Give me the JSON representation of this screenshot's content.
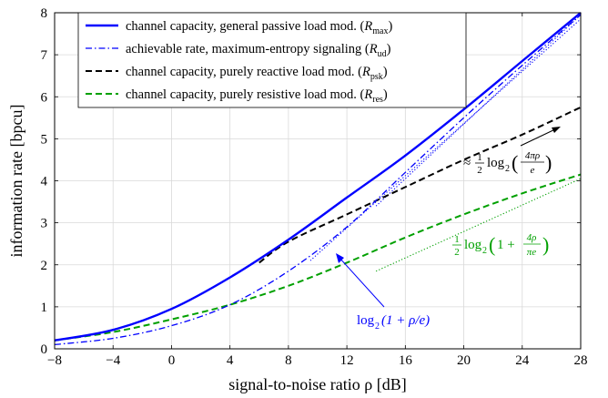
{
  "chart_data": {
    "type": "line",
    "xlabel": "signal-to-noise ratio ρ [dB]",
    "ylabel": "information rate [bpcu]",
    "xlim": [
      -8,
      28
    ],
    "ylim": [
      0,
      8
    ],
    "xticks": [
      -8,
      -4,
      0,
      4,
      8,
      12,
      16,
      20,
      24,
      28
    ],
    "yticks": [
      0,
      1,
      2,
      3,
      4,
      5,
      6,
      7,
      8
    ],
    "xtick_labels": [
      "−8",
      "−4",
      "0",
      "4",
      "8",
      "12",
      "16",
      "20",
      "24",
      "28"
    ],
    "ytick_labels": [
      "0",
      "1",
      "2",
      "3",
      "4",
      "5",
      "6",
      "7",
      "8"
    ],
    "grid": true,
    "legend_position": "top-left",
    "series": [
      {
        "name": "channel capacity, general passive load mod. (Rmax)",
        "legend_main": "channel capacity, general passive load mod. (",
        "legend_sym": "R",
        "legend_sub": "max",
        "color": "#0000ff",
        "style": "solid",
        "x": [
          -8,
          -4,
          0,
          4,
          8,
          12,
          16,
          20,
          24,
          28
        ],
        "y": [
          0.2,
          0.45,
          0.95,
          1.7,
          2.6,
          3.6,
          4.6,
          5.7,
          6.85,
          8.0
        ]
      },
      {
        "name": "achievable rate, maximum-entropy signaling (Rud)",
        "legend_main": "achievable rate, maximum-entropy signaling (",
        "legend_sym": "R",
        "legend_sub": "ud",
        "color": "#0000ff",
        "style": "dashdot",
        "x": [
          -8,
          -4,
          0,
          4,
          8,
          12,
          16,
          20,
          24,
          28
        ],
        "y": [
          0.1,
          0.25,
          0.55,
          1.05,
          1.85,
          2.9,
          4.2,
          5.5,
          6.75,
          7.95
        ]
      },
      {
        "name": "channel capacity, purely reactive load mod. (Rpsk)",
        "legend_main": "channel capacity, purely reactive load mod. (",
        "legend_sym": "R",
        "legend_sub": "psk",
        "color": "#000000",
        "style": "dashed",
        "x": [
          6,
          8,
          12,
          16,
          20,
          24,
          28
        ],
        "y": [
          2.05,
          2.55,
          3.2,
          3.85,
          4.5,
          5.1,
          5.75
        ]
      },
      {
        "name": "channel capacity, purely resistive load mod. (Rres)",
        "legend_main": "channel capacity, purely resistive load mod. (",
        "legend_sym": "R",
        "legend_sub": "res",
        "color": "#00a000",
        "style": "dashed",
        "x": [
          -8,
          -4,
          0,
          4,
          8,
          12,
          16,
          20,
          24,
          28
        ],
        "y": [
          0.2,
          0.4,
          0.7,
          1.05,
          1.5,
          2.05,
          2.65,
          3.2,
          3.7,
          4.15
        ]
      }
    ],
    "asymptotes": [
      {
        "color": "#0000ff",
        "x": [
          14,
          28
        ],
        "y": [
          3.4,
          7.95
        ]
      },
      {
        "color": "#0000ff",
        "x": [
          9.5,
          28
        ],
        "y": [
          2.1,
          7.85
        ]
      },
      {
        "color": "#00a000",
        "x": [
          14,
          28
        ],
        "y": [
          1.85,
          4.05
        ]
      }
    ],
    "annotations": [
      {
        "id": "psk",
        "color": "#000000",
        "prefix": "≈",
        "frac_num": "1",
        "frac_den": "2",
        "log": "log",
        "log_sub": "2",
        "arg_num": "4πρ",
        "arg_den": "e"
      },
      {
        "id": "res",
        "color": "#00a000",
        "prefix": "",
        "frac_num": "1",
        "frac_den": "2",
        "log": "log",
        "log_sub": "2",
        "arg_lead": "1 +",
        "arg_num": "4ρ",
        "arg_den": "πe"
      },
      {
        "id": "ud",
        "color": "#0000ff",
        "log": "log",
        "log_sub": "2",
        "arg": "(1 + ρ/e)"
      }
    ]
  }
}
